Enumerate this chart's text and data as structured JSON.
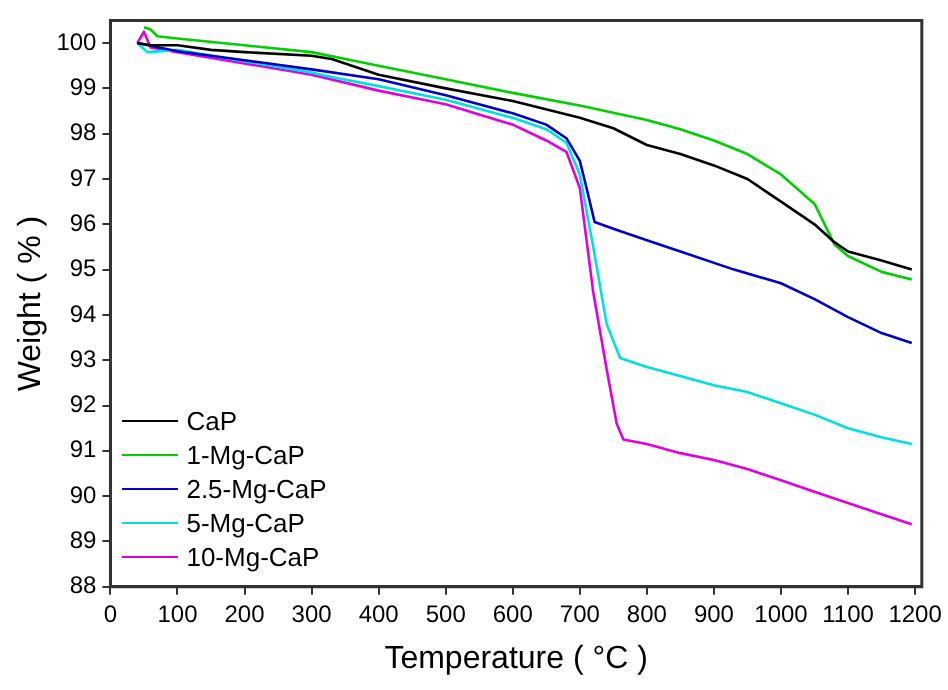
{
  "chart_data": {
    "type": "line",
    "xlabel": "Temperature ( °C )",
    "ylabel": "Weight ( % )",
    "xlim": [
      0,
      1210
    ],
    "xticks": [
      0,
      100,
      200,
      300,
      400,
      500,
      600,
      700,
      800,
      900,
      1000,
      1100,
      1200
    ],
    "ylim": [
      88,
      100.5
    ],
    "yticks": [
      88,
      89,
      90,
      91,
      92,
      93,
      94,
      95,
      96,
      97,
      98,
      99,
      100
    ],
    "grid": false,
    "legend": "bottom left",
    "marker": "none",
    "line_style": "solid",
    "series": [
      {
        "name": "CaP",
        "color": "#000000",
        "x": [
          40,
          60,
          100,
          150,
          200,
          300,
          330,
          400,
          500,
          600,
          700,
          750,
          800,
          850,
          900,
          950,
          1000,
          1050,
          1080,
          1100,
          1150,
          1195
        ],
        "values": [
          100.0,
          99.95,
          99.95,
          99.85,
          99.8,
          99.72,
          99.65,
          99.3,
          99.0,
          98.72,
          98.35,
          98.12,
          97.75,
          97.55,
          97.3,
          97.0,
          96.5,
          96.0,
          95.6,
          95.4,
          95.2,
          95.0
        ]
      },
      {
        "name": "1-Mg-CaP",
        "color": "#00d000",
        "x": [
          50,
          60,
          70,
          100,
          200,
          300,
          400,
          500,
          600,
          700,
          800,
          850,
          900,
          950,
          1000,
          1050,
          1080,
          1100,
          1150,
          1195
        ],
        "values": [
          100.35,
          100.3,
          100.15,
          100.1,
          99.95,
          99.8,
          99.5,
          99.2,
          98.9,
          98.62,
          98.3,
          98.1,
          97.85,
          97.55,
          97.1,
          96.45,
          95.55,
          95.3,
          94.95,
          94.78
        ]
      },
      {
        "name": "2.5-Mg-CaP",
        "color": "#0000c8",
        "x": [
          40,
          100,
          200,
          300,
          400,
          500,
          600,
          650,
          680,
          700,
          710,
          722,
          750,
          800,
          860,
          930,
          1000,
          1050,
          1100,
          1150,
          1195
        ],
        "values": [
          100.0,
          99.82,
          99.62,
          99.42,
          99.2,
          98.85,
          98.45,
          98.2,
          97.9,
          97.4,
          96.8,
          96.05,
          95.9,
          95.65,
          95.35,
          95.0,
          94.7,
          94.35,
          93.95,
          93.6,
          93.38
        ]
      },
      {
        "name": "5-Mg-CaP",
        "color": "#00e0e0",
        "x": [
          40,
          55,
          100,
          200,
          300,
          330,
          400,
          500,
          600,
          650,
          680,
          700,
          720,
          740,
          760,
          800,
          850,
          900,
          950,
          1000,
          1050,
          1100,
          1150,
          1195
        ],
        "values": [
          100.0,
          99.8,
          99.85,
          99.6,
          99.35,
          99.25,
          99.05,
          98.75,
          98.35,
          98.1,
          97.8,
          97.1,
          95.5,
          93.8,
          93.05,
          92.85,
          92.65,
          92.45,
          92.3,
          92.05,
          91.8,
          91.5,
          91.3,
          91.15
        ]
      },
      {
        "name": "10-Mg-CaP",
        "color": "#e000e0",
        "x": [
          40,
          50,
          60,
          100,
          200,
          300,
          400,
          500,
          600,
          650,
          680,
          700,
          720,
          740,
          755,
          765,
          800,
          850,
          900,
          950,
          1000,
          1050,
          1100,
          1150,
          1195
        ],
        "values": [
          100.0,
          100.25,
          99.9,
          99.8,
          99.55,
          99.3,
          98.95,
          98.65,
          98.2,
          97.85,
          97.6,
          96.8,
          94.5,
          92.8,
          91.6,
          91.25,
          91.15,
          90.95,
          90.8,
          90.6,
          90.35,
          90.1,
          89.85,
          89.6,
          89.38
        ]
      }
    ]
  }
}
